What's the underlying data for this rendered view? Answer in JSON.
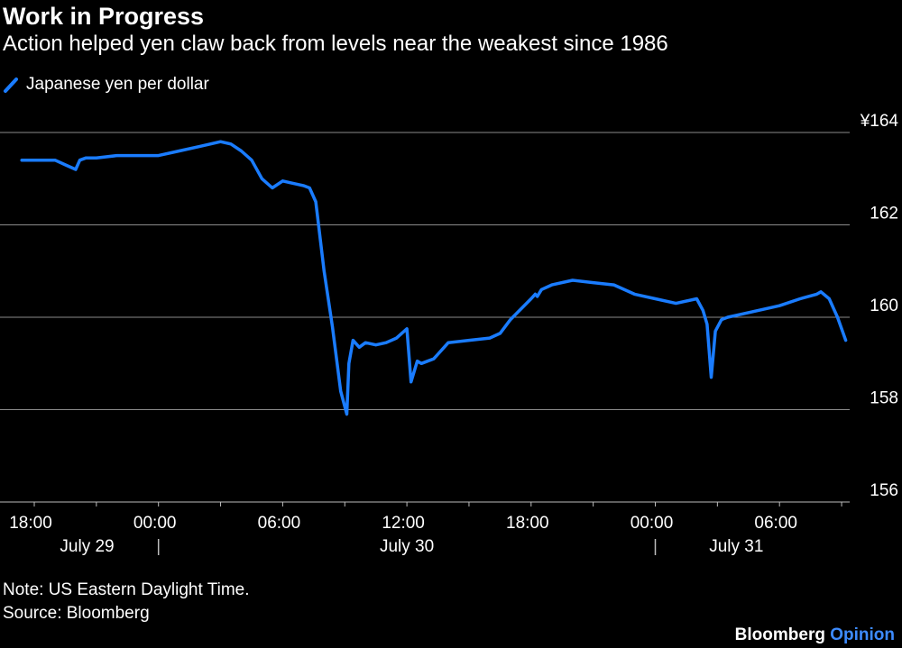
{
  "title": "Work in Progress",
  "subtitle": "Action helped yen claw back from levels near the weakest since 1986",
  "legend": {
    "label": "Japanese yen per dollar",
    "color": "#1a7cff"
  },
  "note": "Note: US Eastern Daylight Time.",
  "source": "Source: Bloomberg",
  "brand": {
    "name": "Bloomberg",
    "suffix": "Opinion"
  },
  "chart_data": {
    "type": "line",
    "series": [
      {
        "name": "Japanese yen per dollar",
        "color": "#1a7cff",
        "x": [
          -0.6,
          0.0,
          1.0,
          1.5,
          2.0,
          2.2,
          2.5,
          3.0,
          4.0,
          5.0,
          6.0,
          7.0,
          8.0,
          9.0,
          9.5,
          10.0,
          10.5,
          11.0,
          11.5,
          12.0,
          12.5,
          13.0,
          13.3,
          13.6,
          14.0,
          14.4,
          14.8,
          15.1,
          15.2,
          15.4,
          15.7,
          16.0,
          16.5,
          17.0,
          17.5,
          18.0,
          18.2,
          18.5,
          18.7,
          19.0,
          19.3,
          19.5,
          19.8,
          20.0,
          21.0,
          22.0,
          22.5,
          23.0,
          24.0,
          24.2,
          24.3,
          24.5,
          25.0,
          26.0,
          27.0,
          28.0,
          29.0,
          30.0,
          31.0,
          32.0,
          32.3,
          32.5,
          32.7,
          32.9,
          33.2,
          33.5,
          34.0,
          35.0,
          36.0,
          37.0,
          37.8,
          38.0,
          38.4,
          38.8,
          39.2
        ],
        "y": [
          163.4,
          163.4,
          163.4,
          163.3,
          163.2,
          163.4,
          163.45,
          163.45,
          163.5,
          163.5,
          163.5,
          163.6,
          163.7,
          163.8,
          163.75,
          163.6,
          163.4,
          163.0,
          162.8,
          162.95,
          162.9,
          162.85,
          162.8,
          162.5,
          161.0,
          159.8,
          158.4,
          157.9,
          159.0,
          159.5,
          159.35,
          159.45,
          159.4,
          159.45,
          159.55,
          159.75,
          158.6,
          159.05,
          159.0,
          159.05,
          159.1,
          159.2,
          159.35,
          159.45,
          159.5,
          159.55,
          159.65,
          159.95,
          160.4,
          160.5,
          160.45,
          160.6,
          160.7,
          160.8,
          160.75,
          160.7,
          160.5,
          160.4,
          160.3,
          160.4,
          160.15,
          159.85,
          158.7,
          159.7,
          159.95,
          160.0,
          160.05,
          160.15,
          160.25,
          160.4,
          160.5,
          160.55,
          160.4,
          160.0,
          159.5
        ]
      }
    ],
    "x_ticks": [
      "18:00",
      "00:00",
      "06:00",
      "12:00",
      "18:00",
      "00:00",
      "06:00"
    ],
    "x_date_labels": [
      "July 29",
      "July 30",
      "July 31"
    ],
    "y_ticks": [
      "¥164",
      "162",
      "160",
      "158",
      "156"
    ],
    "ylim": [
      156,
      164
    ],
    "grid": true,
    "legend_position": "top-left"
  }
}
